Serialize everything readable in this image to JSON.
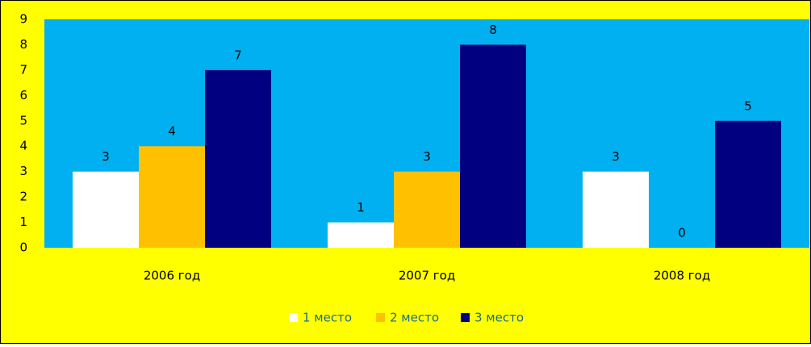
{
  "chart_data": {
    "type": "bar",
    "categories": [
      "2006 год",
      "2007 год",
      "2008 год"
    ],
    "series": [
      {
        "name": "1 место",
        "color": "#ffffff",
        "values": [
          3,
          1,
          3
        ]
      },
      {
        "name": "2 место",
        "color": "#ffc000",
        "values": [
          4,
          3,
          0
        ]
      },
      {
        "name": "3 место",
        "color": "#000080",
        "values": [
          7,
          8,
          5
        ]
      }
    ],
    "ylim": [
      0,
      9
    ],
    "yticks": [
      0,
      1,
      2,
      3,
      4,
      5,
      6,
      7,
      8,
      9
    ],
    "grid": false,
    "legend": "bottom",
    "background": "#ffff00",
    "plot_background": "#00b0f0"
  }
}
